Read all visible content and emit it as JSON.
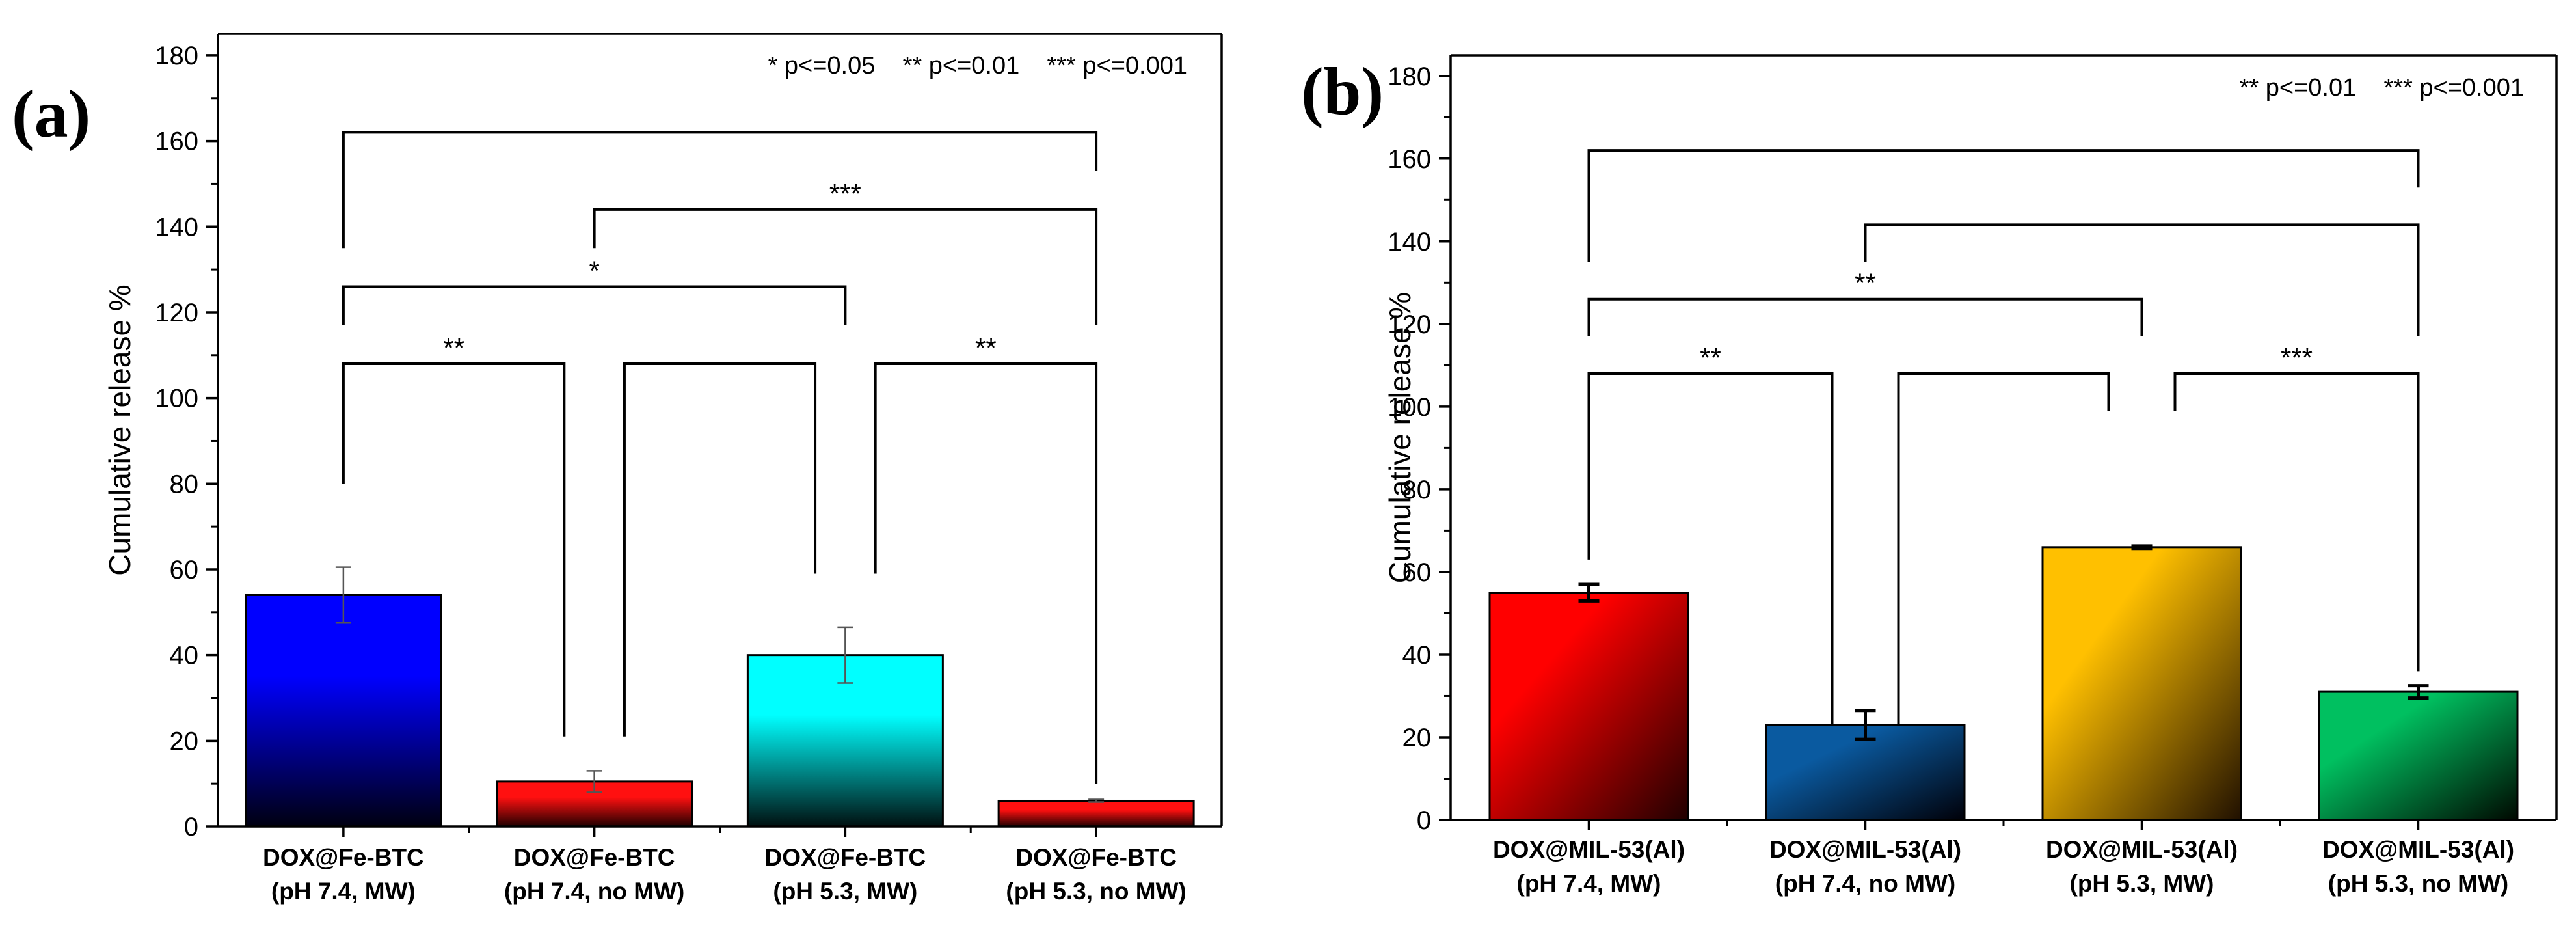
{
  "chart_data": [
    {
      "type": "bar",
      "panel_label": "(a)",
      "ylabel": "Cumulative release %",
      "xlabel": "",
      "ylim": [
        0,
        185
      ],
      "yticks": [
        0,
        20,
        40,
        60,
        80,
        100,
        120,
        140,
        160,
        180
      ],
      "categories": [
        [
          "DOX@Fe-BTC",
          "(pH 7.4, MW)"
        ],
        [
          "DOX@Fe-BTC",
          "(pH 7.4, no MW)"
        ],
        [
          "DOX@Fe-BTC",
          "(pH 5.3, MW)"
        ],
        [
          "DOX@Fe-BTC",
          "(pH 5.3, no MW)"
        ]
      ],
      "values": [
        54,
        10.5,
        40,
        6
      ],
      "errors": [
        6.5,
        2.5,
        6.5,
        0.3
      ],
      "bar_colors": [
        [
          "#0000ff",
          "#000010"
        ],
        [
          "#ff1010",
          "#200000"
        ],
        [
          "#00ffff",
          "#001010"
        ],
        [
          "#ff1010",
          "#200000"
        ]
      ],
      "error_style": "thin",
      "legend_note": "* p<=0.05    ** p<=0.01    *** p<=0.001",
      "brackets": [
        {
          "from": 0,
          "to": 3,
          "top": 162,
          "left_end": 135,
          "right_end": 153,
          "label": ""
        },
        {
          "from": 1,
          "to": 3,
          "top": 144,
          "left_end": 135,
          "right_end": 117,
          "label": "***"
        },
        {
          "from": 0,
          "to": 2,
          "top": 126,
          "left_end": 117,
          "right_end": 117,
          "label": "*"
        },
        {
          "from": 0,
          "to": 1,
          "top": 108,
          "left_end": 80,
          "right_end": 21,
          "label": "**"
        },
        {
          "from": 1,
          "to": 2,
          "top": 108,
          "left_end": 21,
          "right_end": 59,
          "label": ""
        },
        {
          "from": 2,
          "to": 3,
          "top": 108,
          "left_end": 59,
          "right_end": 10,
          "label": "**"
        }
      ]
    },
    {
      "type": "bar",
      "panel_label": "(b)",
      "ylabel": "Cumulative release %",
      "xlabel": "",
      "ylim": [
        0,
        185
      ],
      "yticks": [
        0,
        20,
        40,
        60,
        80,
        100,
        120,
        140,
        160,
        180
      ],
      "categories": [
        [
          "DOX@MIL-53(Al)",
          "(pH 7.4, MW)"
        ],
        [
          "DOX@MIL-53(Al)",
          "(pH 7.4, no MW)"
        ],
        [
          "DOX@MIL-53(Al)",
          "(pH 5.3, MW)"
        ],
        [
          "DOX@MIL-53(Al)",
          "(pH 5.3, no MW)"
        ]
      ],
      "values": [
        55,
        23,
        66,
        31
      ],
      "errors": [
        2,
        3.5,
        0.3,
        1.5
      ],
      "bar_colors": [
        [
          "#ff0000",
          "#200000"
        ],
        [
          "#0a5aa0",
          "#000008"
        ],
        [
          "#ffc000",
          "#201000"
        ],
        [
          "#00c060",
          "#000800"
        ]
      ],
      "error_style": "thick",
      "legend_note": "** p<=0.01    *** p<=0.001",
      "brackets": [
        {
          "from": 0,
          "to": 3,
          "top": 162,
          "left_end": 135,
          "right_end": 153,
          "label": ""
        },
        {
          "from": 1,
          "to": 3,
          "top": 144,
          "left_end": 135,
          "right_end": 117,
          "label": ""
        },
        {
          "from": 0,
          "to": 2,
          "top": 126,
          "left_end": 117,
          "right_end": 117,
          "label": "**"
        },
        {
          "from": 0,
          "to": 1,
          "top": 108,
          "left_end": 63,
          "right_end": 23,
          "label": "**"
        },
        {
          "from": 1,
          "to": 2,
          "top": 108,
          "left_end": 23,
          "right_end": 99,
          "label": ""
        },
        {
          "from": 2,
          "to": 3,
          "top": 108,
          "left_end": 99,
          "right_end": 36,
          "label": "***"
        }
      ]
    }
  ]
}
